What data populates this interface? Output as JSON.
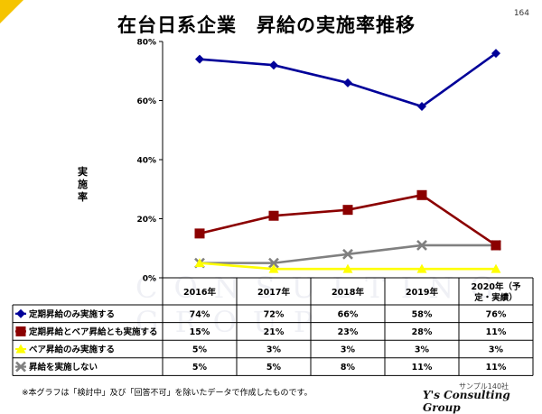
{
  "page_number": "164",
  "title": "在台日系企業　昇給の実施率推移",
  "y_axis_label": "実施率",
  "footnote": "※本グラフは「検討中」及び「回答不可」を除いたデータで作成したものです。",
  "sample_text": "サンプル140社",
  "company": "Y's Consulting Group",
  "watermark": "CONSULTING GROUP",
  "chart_data": {
    "type": "line",
    "categories": [
      "2016年",
      "2017年",
      "2018年",
      "2019年",
      "2020年（予定・実績）"
    ],
    "category_lines": [
      [
        "2016年"
      ],
      [
        "2017年"
      ],
      [
        "2018年"
      ],
      [
        "2019年"
      ],
      [
        "2020年（予",
        "定・実績）"
      ]
    ],
    "ylim": [
      0,
      80
    ],
    "yticks": [
      0,
      20,
      40,
      60,
      80
    ],
    "ytick_labels": [
      "0%",
      "20%",
      "40%",
      "60%",
      "80%"
    ],
    "grid": false,
    "legend": "data-table",
    "series": [
      {
        "name": "定期昇給のみ実施する",
        "values": [
          74,
          72,
          66,
          58,
          76
        ],
        "labels": [
          "74%",
          "72%",
          "66%",
          "58%",
          "76%"
        ],
        "color": "#000099",
        "marker": "diamond"
      },
      {
        "name": "定期昇給とベア昇給とも実施する",
        "values": [
          15,
          21,
          23,
          28,
          11
        ],
        "labels": [
          "15%",
          "21%",
          "23%",
          "28%",
          "11%"
        ],
        "color": "#8b0000",
        "marker": "square"
      },
      {
        "name": "ベア昇給のみ実施する",
        "values": [
          5,
          3,
          3,
          3,
          3
        ],
        "labels": [
          "5%",
          "3%",
          "3%",
          "3%",
          "3%"
        ],
        "color": "#ffff00",
        "marker": "triangle"
      },
      {
        "name": "昇給を実施しない",
        "values": [
          5,
          5,
          8,
          11,
          11
        ],
        "labels": [
          "5%",
          "5%",
          "8%",
          "11%",
          "11%"
        ],
        "color": "#808080",
        "marker": "x"
      }
    ]
  }
}
